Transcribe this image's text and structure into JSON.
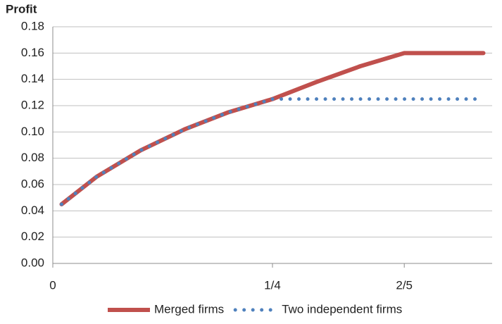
{
  "chart_data": {
    "type": "line",
    "y_label": "Profit",
    "x": [
      0.01,
      0.05,
      0.1,
      0.15,
      0.2,
      0.25,
      0.3,
      0.35,
      0.4,
      0.49
    ],
    "series": [
      {
        "name": "Merged firms",
        "color": "#c0504d",
        "values": [
          0.045,
          0.066,
          0.086,
          0.102,
          0.115,
          0.125,
          0.138,
          0.15,
          0.16,
          0.16
        ]
      },
      {
        "name": "Two independent firms",
        "color": "#4f81bd",
        "values": [
          0.045,
          0.066,
          0.086,
          0.102,
          0.115,
          0.125,
          0.125,
          0.125,
          0.125,
          0.125
        ]
      }
    ],
    "xlim": [
      0,
      0.5
    ],
    "xticks": [
      0,
      {
        "value": 0.25,
        "label": "1/4"
      },
      {
        "value": 0.4,
        "label": "2/5"
      }
    ],
    "ylim": [
      0,
      0.18
    ],
    "yticks": [
      {
        "value": 0,
        "label": "0.00"
      },
      {
        "value": 0.02,
        "label": "0.02"
      },
      {
        "value": 0.04,
        "label": "0.04"
      },
      {
        "value": 0.06,
        "label": "0.06"
      },
      {
        "value": 0.08,
        "label": "0.08"
      },
      {
        "value": 0.1,
        "label": "0.10"
      },
      {
        "value": 0.12,
        "label": "0.12"
      },
      {
        "value": 0.14,
        "label": "0.14"
      },
      {
        "value": 0.16,
        "label": "0.16"
      },
      {
        "value": 0.18,
        "label": "0.18"
      }
    ],
    "grid": true,
    "legend": "bottom"
  }
}
